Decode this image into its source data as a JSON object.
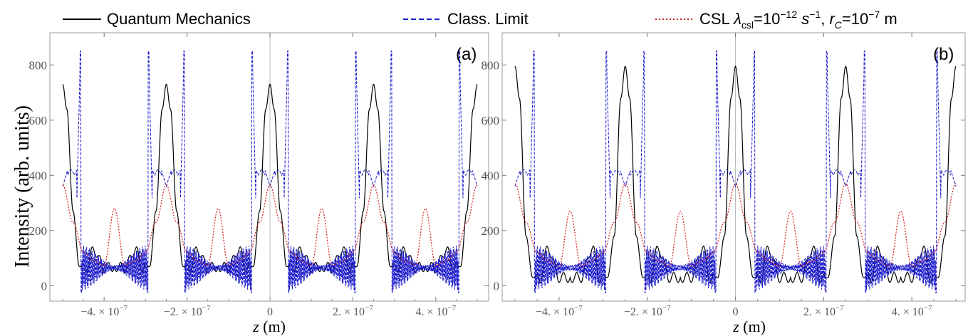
{
  "legend": {
    "qm_label": "Quantum Mechanics",
    "cl_label": "Class. Limit",
    "csl_prefix": "CSL ",
    "csl_lambda": "λ",
    "csl_lambda_sub": "csl",
    "csl_eq1": "=10",
    "csl_exp1": "−12",
    "csl_unit_s": "s",
    "csl_exp_s": "−1",
    "csl_comma": ", ",
    "csl_r": "r",
    "csl_r_sub": "C",
    "csl_eq2": "=10",
    "csl_exp2": "−7",
    "csl_unit_m": " m"
  },
  "ylabel": "Intensity (arb. units)",
  "xlabel_var": "z",
  "xlabel_unit": "(m)",
  "colors": {
    "qm": "#000000",
    "classical": "#1a1acc",
    "csl": "#d61a1a",
    "frame": "#9a9a9a",
    "tick_text": "#555555"
  },
  "chart_data": [
    {
      "type": "line",
      "panel": "(a)",
      "xlim": [
        -5e-07,
        5e-07
      ],
      "ylim": [
        -30,
        860
      ],
      "grid": false,
      "legend_position": "top",
      "y_ticks": [
        0,
        200,
        400,
        600,
        800
      ],
      "x_ticks": [
        -4e-07,
        -2e-07,
        0,
        2e-07,
        4e-07
      ],
      "x_tick_labels": [
        "−4. × 10",
        "−2. × 10",
        "0",
        "2. × 10",
        "4. × 10"
      ],
      "x_tick_exponent": "−7",
      "period": 2.5e-07,
      "series": [
        {
          "name": "Quantum Mechanics",
          "style": "solid",
          "x": [
            -1.25e-07,
            -1e-07,
            -7.5e-08,
            -5.5e-08,
            -4e-08,
            -2.5e-08,
            -1e-08,
            0,
            1e-08,
            2.5e-08,
            4e-08,
            5.5e-08,
            7.5e-08,
            1e-07,
            1.25e-07
          ],
          "y": [
            70,
            65,
            130,
            60,
            70,
            270,
            640,
            730,
            640,
            270,
            70,
            60,
            130,
            65,
            70
          ]
        },
        {
          "name": "Class. Limit",
          "style": "dashed",
          "x": [
            -1.25e-07,
            -4.2e-08,
            -4.1e-08,
            -3.3e-08,
            -2.5e-08,
            -1e-08,
            0,
            1e-08,
            2.5e-08,
            3.3e-08,
            4.1e-08,
            4.2e-08,
            1.25e-07
          ],
          "y": [
            60,
            -25,
            850,
            300,
            400,
            420,
            360,
            420,
            400,
            300,
            850,
            -25,
            60
          ]
        },
        {
          "name": "CSL λcsl=10−12 s−1, rC=10−7 m",
          "style": "dotted",
          "x": [
            -1.25e-07,
            -1e-07,
            -7.5e-08,
            -5e-08,
            -2.5e-08,
            0,
            2.5e-08,
            5e-08,
            7.5e-08,
            1e-07,
            1.25e-07
          ],
          "y": [
            280,
            75,
            90,
            120,
            230,
            365,
            230,
            120,
            90,
            75,
            280
          ]
        }
      ]
    },
    {
      "type": "line",
      "panel": "(b)",
      "xlim": [
        -5e-07,
        5e-07
      ],
      "ylim": [
        -30,
        860
      ],
      "grid": false,
      "legend_position": "top",
      "y_ticks": [
        0,
        200,
        400,
        600,
        800
      ],
      "x_ticks": [
        -4e-07,
        -2e-07,
        0,
        2e-07,
        4e-07
      ],
      "x_tick_labels": [
        "−4. × 10",
        "−2. × 10",
        "0",
        "2. × 10",
        "4. × 10"
      ],
      "x_tick_exponent": "−7",
      "period": 2.5e-07,
      "series": [
        {
          "name": "Quantum Mechanics",
          "style": "solid",
          "x": [
            -1.25e-07,
            -1e-07,
            -7.5e-08,
            -5.5e-08,
            -4e-08,
            -2.5e-08,
            -1e-08,
            0,
            1e-08,
            2.5e-08,
            4e-08,
            5.5e-08,
            7.5e-08,
            1e-07,
            1.25e-07
          ],
          "y": [
            30,
            30,
            135,
            20,
            30,
            180,
            680,
            795,
            680,
            180,
            30,
            20,
            135,
            30,
            30
          ]
        },
        {
          "name": "Class. Limit",
          "style": "dashed",
          "x": [
            -1.25e-07,
            -4.2e-08,
            -4.1e-08,
            -3.3e-08,
            -2.5e-08,
            -1e-08,
            0,
            1e-08,
            2.5e-08,
            3.3e-08,
            4.1e-08,
            4.2e-08,
            1.25e-07
          ],
          "y": [
            60,
            -25,
            850,
            300,
            400,
            420,
            370,
            420,
            400,
            300,
            850,
            -25,
            60
          ]
        },
        {
          "name": "CSL λcsl=10−12 s−1, rC=10−7 m",
          "style": "dotted",
          "x": [
            -1.25e-07,
            -1e-07,
            -7.5e-08,
            -5e-08,
            -2.5e-08,
            0,
            2.5e-08,
            5e-08,
            7.5e-08,
            1e-07,
            1.25e-07
          ],
          "y": [
            270,
            70,
            90,
            120,
            230,
            370,
            230,
            120,
            90,
            70,
            270
          ]
        }
      ]
    }
  ]
}
